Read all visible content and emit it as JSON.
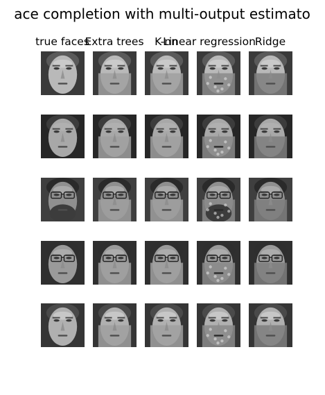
{
  "title": "ace completion with multi-output estimato",
  "columns": [
    "true faces",
    "Extra trees",
    "K-nn",
    "Linear regression",
    "Ridge"
  ],
  "rows": 5,
  "image_colormap": "grayscale"
}
